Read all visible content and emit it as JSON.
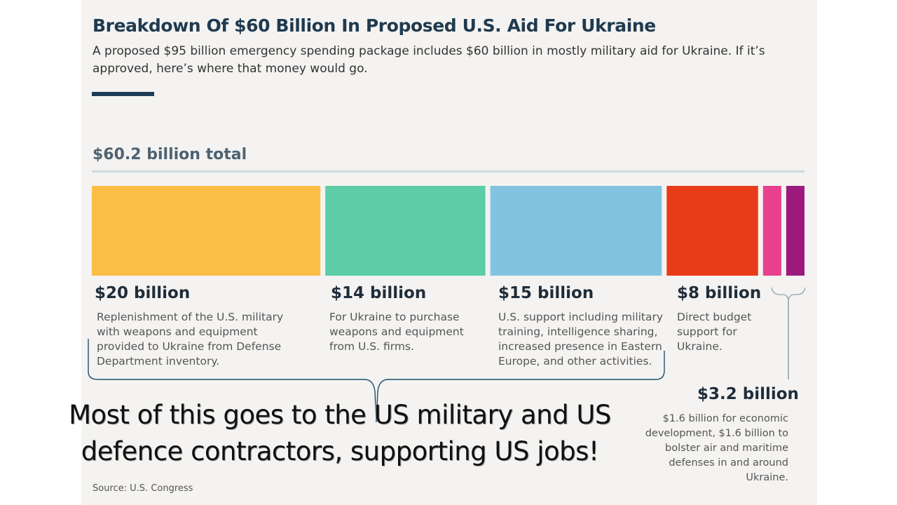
{
  "chart_data": {
    "type": "bar",
    "title": "Breakdown Of $60 Billion In Proposed U.S. Aid For Ukraine",
    "subtitle": "A proposed $95 billion emergency spending package includes $60 billion in mostly military aid for Ukraine. If it’s approved, here’s where that money would go.",
    "total_label": "$60.2 billion total",
    "total": 60.2,
    "segments": [
      {
        "value": 20,
        "color": "#fcbd47",
        "amount_label": "$20 billion",
        "description": "Replenishment of the U.S. military with weapons and equipment provided to Ukraine from Defense Department inventory."
      },
      {
        "value": 14,
        "color": "#5ccda6",
        "amount_label": "$14 billion",
        "description": "For Ukraine to purchase weapons and equipment from U.S. firms."
      },
      {
        "value": 15,
        "color": "#82c4df",
        "amount_label": "$15 billion",
        "description": "U.S. support including military training, intelligence sharing, increased presence in Eastern Europe, and other activities."
      },
      {
        "value": 8,
        "color": "#e83c18",
        "amount_label": "$8 billion",
        "description": "Direct budget support for Ukraine."
      },
      {
        "value": 1.6,
        "color": "#e8408e"
      },
      {
        "value": 1.6,
        "color": "#9c1a7e"
      }
    ],
    "grouped_label": {
      "amount_label": "$3.2 billion",
      "description": "$1.6 billion for economic development, $1.6 billion to bolster air and maritime defenses in and around Ukraine."
    },
    "source": "Source: U.S. Congress"
  },
  "overlay": {
    "text": "Most of this goes to the US military and US defence contractors, supporting US jobs!",
    "bracket_color": "#1e4f6b"
  }
}
